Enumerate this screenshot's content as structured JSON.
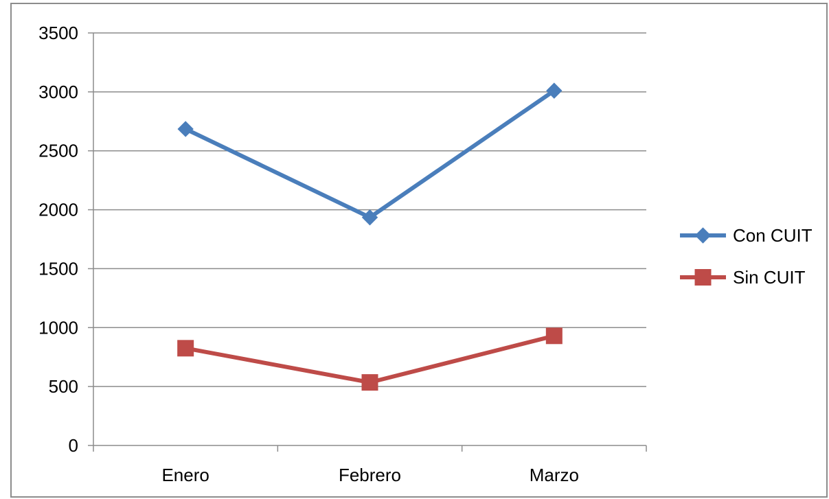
{
  "chart_data": {
    "type": "line",
    "categories": [
      "Enero",
      "Febrero",
      "Marzo"
    ],
    "series": [
      {
        "name": "Con CUIT",
        "values": [
          2685,
          1935,
          3010
        ],
        "color": "#4a7ebb",
        "marker": "diamond"
      },
      {
        "name": "Sin CUIT",
        "values": [
          825,
          535,
          930
        ],
        "color": "#be4b48",
        "marker": "square"
      }
    ],
    "yticks": [
      0,
      500,
      1000,
      1500,
      2000,
      2500,
      3000,
      3500
    ],
    "ylim": [
      0,
      3500
    ],
    "grid": true,
    "legend": "right"
  }
}
